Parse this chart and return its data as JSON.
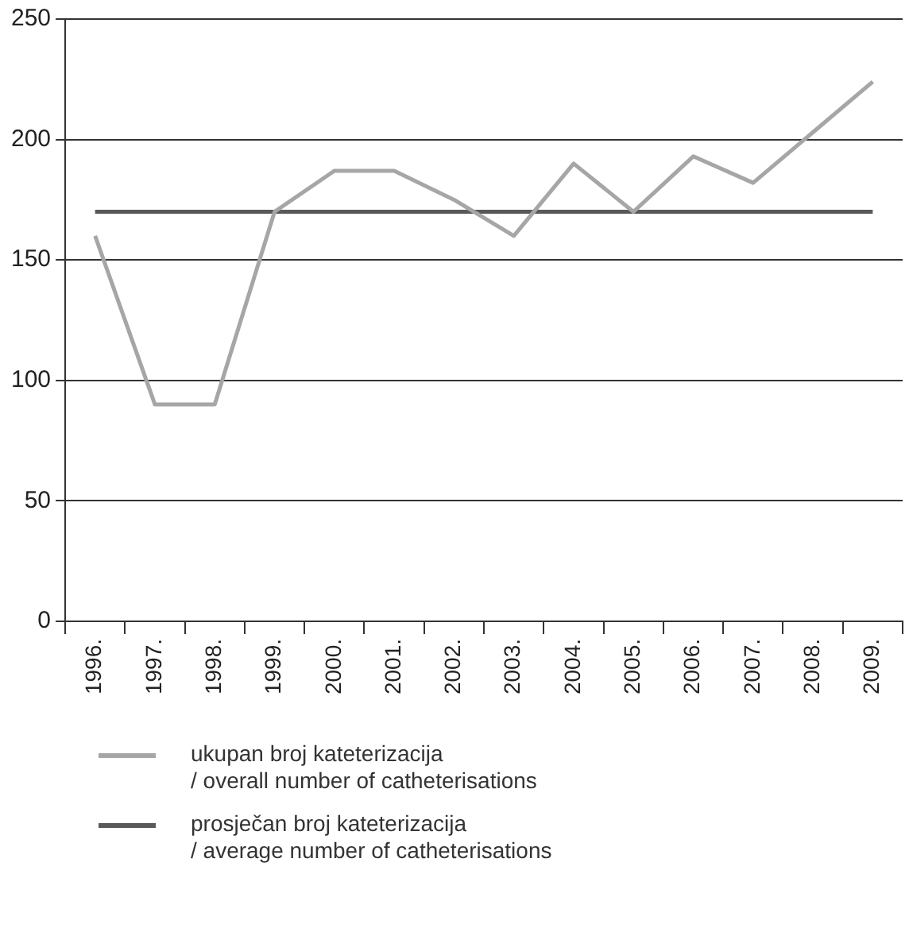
{
  "chart_data": {
    "type": "line",
    "categories": [
      "1996.",
      "1997.",
      "1998.",
      "1999.",
      "2000.",
      "2001.",
      "2002.",
      "2003.",
      "2004.",
      "2005.",
      "2006.",
      "2007.",
      "2008.",
      "2009."
    ],
    "series": [
      {
        "name": "ukupan broj kateterizacija\n/ overall number of catheterisations",
        "color": "#a6a6a6",
        "values": [
          160,
          90,
          90,
          170,
          187,
          187,
          175,
          160,
          190,
          170,
          193,
          182,
          203,
          224
        ]
      },
      {
        "name": "prosječan broj kateterizacija\n/ average number of catheterisations",
        "color": "#595959",
        "values": [
          170,
          170,
          170,
          170,
          170,
          170,
          170,
          170,
          170,
          170,
          170,
          170,
          170,
          170
        ]
      }
    ],
    "ylim": [
      0,
      250
    ],
    "yticks": [
      0,
      50,
      100,
      150,
      200,
      250
    ],
    "grid": "y",
    "legend": "bottom",
    "marker": "none",
    "line_style": "solid"
  }
}
